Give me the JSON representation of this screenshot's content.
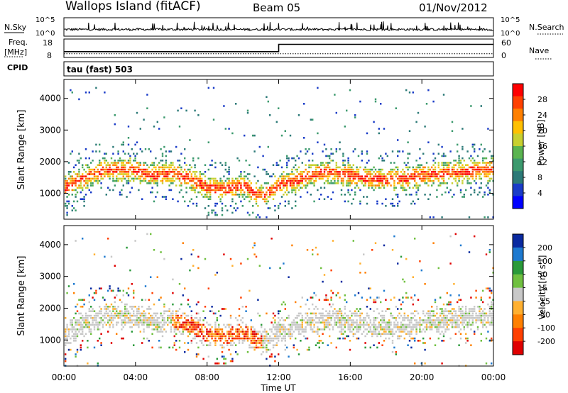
{
  "header": {
    "station": "Wallops Island (fitACF)",
    "beam": "Beam 05",
    "date": "01/Nov/2012"
  },
  "noise_panel": {
    "left_label": "N.Sky",
    "left_ticks": [
      "10^5",
      "10^0"
    ],
    "right_label": "N.Search",
    "right_ticks": [
      "10^5",
      "10^0"
    ]
  },
  "freq_panel": {
    "left_label_top": "Freq.",
    "left_label_unit": "[MHz]",
    "left_ticks": [
      "18",
      "8"
    ],
    "right_label": "Nave",
    "right_ticks": [
      "60",
      "0"
    ]
  },
  "cpid_panel": {
    "label": "CPID",
    "value": "tau (fast) 503"
  },
  "x_axis": {
    "label": "Time UT",
    "ticks": [
      "00:00",
      "04:00",
      "08:00",
      "12:00",
      "16:00",
      "20:00",
      "00:00"
    ]
  },
  "chart_data": [
    {
      "type": "heatmap",
      "name": "power",
      "ylabel": "Slant Range [km]",
      "y_ticks": [
        1000,
        2000,
        3000,
        4000
      ],
      "ylim": [
        180,
        4600
      ],
      "xlim_hours": [
        0,
        24
      ],
      "colorbar": {
        "label": "Power [dB]",
        "ticks": [
          "28",
          "24",
          "20",
          "16",
          "12",
          "8",
          "4"
        ],
        "colors": [
          "#ff0000",
          "#ff4000",
          "#ff8000",
          "#ffc000",
          "#c8d030",
          "#5ab450",
          "#3c9a6e",
          "#2c7a78",
          "#1a3cc8",
          "#0000ff"
        ]
      },
      "band_center_km": [
        [
          0,
          1200
        ],
        [
          1,
          1500
        ],
        [
          2,
          1750
        ],
        [
          3,
          1800
        ],
        [
          4,
          1750
        ],
        [
          5,
          1600
        ],
        [
          6,
          1650
        ],
        [
          7,
          1500
        ],
        [
          8,
          1200
        ],
        [
          9,
          1150
        ],
        [
          10,
          1300
        ],
        [
          11,
          900
        ],
        [
          12,
          1300
        ],
        [
          13,
          1450
        ],
        [
          14,
          1650
        ],
        [
          15,
          1700
        ],
        [
          16,
          1600
        ],
        [
          17,
          1500
        ],
        [
          18,
          1450
        ],
        [
          19,
          1500
        ],
        [
          20,
          1600
        ],
        [
          21,
          1650
        ],
        [
          22,
          1700
        ],
        [
          23,
          1750
        ],
        [
          24,
          1800
        ]
      ]
    },
    {
      "type": "heatmap",
      "name": "velocity",
      "ylabel": "Slant Range [km]",
      "y_ticks": [
        1000,
        2000,
        3000,
        4000
      ],
      "ylim": [
        180,
        4600
      ],
      "xlim_hours": [
        0,
        24
      ],
      "colorbar": {
        "label": "Velocity [m s^-1]",
        "ticks": [
          "200",
          "100",
          "50",
          "15",
          "-15",
          "-50",
          "-100",
          "-200"
        ],
        "colors": [
          "#0a2aa0",
          "#1e7ad0",
          "#2a9a3a",
          "#70c040",
          "#c8c8c8",
          "#ffb030",
          "#ff8000",
          "#ff4000",
          "#e00000"
        ]
      }
    }
  ],
  "series": {
    "freq_level_mhz": [
      [
        0,
        10.5
      ],
      [
        12,
        10.5
      ],
      [
        12,
        16.5
      ],
      [
        24,
        16.5
      ]
    ],
    "nave": [
      [
        0,
        10
      ],
      [
        24,
        10
      ]
    ]
  }
}
